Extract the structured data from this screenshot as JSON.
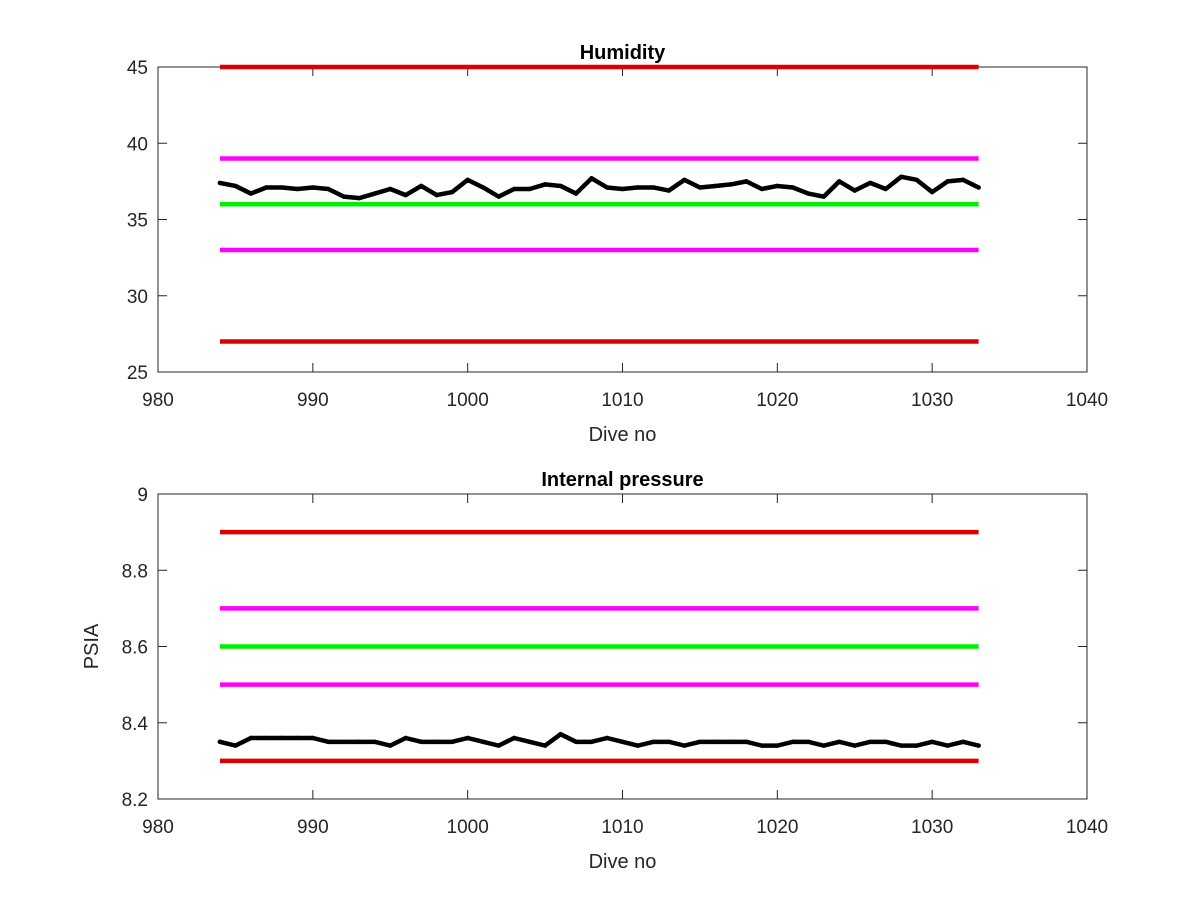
{
  "chart_data": [
    {
      "type": "line",
      "title": "Humidity",
      "xlabel": "Dive no",
      "ylabel": "",
      "xlim": [
        980,
        1040
      ],
      "ylim": [
        25,
        45
      ],
      "xticks": [
        980,
        990,
        1000,
        1010,
        1020,
        1030,
        1040
      ],
      "yticks": [
        25,
        30,
        35,
        40,
        45
      ],
      "grid": false,
      "legend": "none",
      "reference_lines": [
        {
          "y": 45,
          "x_range": [
            984,
            1033
          ],
          "color": "#dd0000"
        },
        {
          "y": 39,
          "x_range": [
            984,
            1033
          ],
          "color": "#ff00ff"
        },
        {
          "y": 36,
          "x_range": [
            984,
            1033
          ],
          "color": "#00ee00"
        },
        {
          "y": 33,
          "x_range": [
            984,
            1033
          ],
          "color": "#ff00ff"
        },
        {
          "y": 27,
          "x_range": [
            984,
            1033
          ],
          "color": "#dd0000"
        }
      ],
      "series": [
        {
          "color": "#000000",
          "x": [
            984,
            985,
            986,
            987,
            988,
            989,
            990,
            991,
            992,
            993,
            994,
            995,
            996,
            997,
            998,
            999,
            1000,
            1001,
            1002,
            1003,
            1004,
            1005,
            1006,
            1007,
            1008,
            1009,
            1010,
            1011,
            1012,
            1013,
            1014,
            1015,
            1016,
            1017,
            1018,
            1019,
            1020,
            1021,
            1022,
            1023,
            1024,
            1025,
            1026,
            1027,
            1028,
            1029,
            1030,
            1031,
            1032,
            1033
          ],
          "values": [
            37.4,
            37.2,
            36.7,
            37.1,
            37.1,
            37.0,
            37.1,
            37.0,
            36.5,
            36.4,
            36.7,
            37.0,
            36.6,
            37.2,
            36.6,
            36.8,
            37.6,
            37.1,
            36.5,
            37.0,
            37.0,
            37.3,
            37.2,
            36.7,
            37.7,
            37.1,
            37.0,
            37.1,
            37.1,
            36.9,
            37.6,
            37.1,
            37.2,
            37.3,
            37.5,
            37.0,
            37.2,
            37.1,
            36.7,
            36.5,
            37.5,
            36.9,
            37.4,
            37.0,
            37.8,
            37.6,
            36.8,
            37.5,
            37.6,
            37.1
          ]
        }
      ]
    },
    {
      "type": "line",
      "title": "Internal pressure",
      "xlabel": "Dive no",
      "ylabel": "PSIA",
      "xlim": [
        980,
        1040
      ],
      "ylim": [
        8.2,
        9
      ],
      "xticks": [
        980,
        990,
        1000,
        1010,
        1020,
        1030,
        1040
      ],
      "yticks": [
        8.2,
        8.4,
        8.6,
        8.8,
        9
      ],
      "grid": false,
      "legend": "none",
      "reference_lines": [
        {
          "y": 8.9,
          "x_range": [
            984,
            1033
          ],
          "color": "#dd0000"
        },
        {
          "y": 8.7,
          "x_range": [
            984,
            1033
          ],
          "color": "#ff00ff"
        },
        {
          "y": 8.6,
          "x_range": [
            984,
            1033
          ],
          "color": "#00ee00"
        },
        {
          "y": 8.5,
          "x_range": [
            984,
            1033
          ],
          "color": "#ff00ff"
        },
        {
          "y": 8.3,
          "x_range": [
            984,
            1033
          ],
          "color": "#dd0000"
        }
      ],
      "series": [
        {
          "color": "#000000",
          "x": [
            984,
            985,
            986,
            987,
            988,
            989,
            990,
            991,
            992,
            993,
            994,
            995,
            996,
            997,
            998,
            999,
            1000,
            1001,
            1002,
            1003,
            1004,
            1005,
            1006,
            1007,
            1008,
            1009,
            1010,
            1011,
            1012,
            1013,
            1014,
            1015,
            1016,
            1017,
            1018,
            1019,
            1020,
            1021,
            1022,
            1023,
            1024,
            1025,
            1026,
            1027,
            1028,
            1029,
            1030,
            1031,
            1032,
            1033
          ],
          "values": [
            8.35,
            8.34,
            8.36,
            8.36,
            8.36,
            8.36,
            8.36,
            8.35,
            8.35,
            8.35,
            8.35,
            8.34,
            8.36,
            8.35,
            8.35,
            8.35,
            8.36,
            8.35,
            8.34,
            8.36,
            8.35,
            8.34,
            8.37,
            8.35,
            8.35,
            8.36,
            8.35,
            8.34,
            8.35,
            8.35,
            8.34,
            8.35,
            8.35,
            8.35,
            8.35,
            8.34,
            8.34,
            8.35,
            8.35,
            8.34,
            8.35,
            8.34,
            8.35,
            8.35,
            8.34,
            8.34,
            8.35,
            8.34,
            8.35,
            8.34
          ]
        }
      ]
    }
  ]
}
